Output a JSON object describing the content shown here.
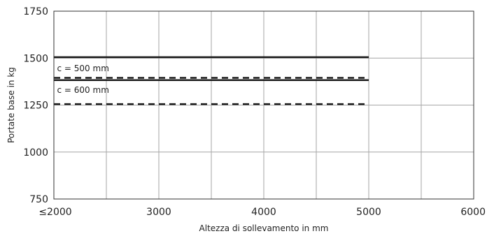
{
  "chart_data": {
    "type": "line",
    "xlabel": "Altezza di sollevamento in mm",
    "ylabel": "Portate base in kg",
    "xlim": [
      2000,
      6000
    ],
    "ylim": [
      750,
      1750
    ],
    "x_ticks": [
      {
        "value": 2000,
        "label": "≤2000"
      },
      {
        "value": 3000,
        "label": "3000"
      },
      {
        "value": 4000,
        "label": "4000"
      },
      {
        "value": 5000,
        "label": "5000"
      },
      {
        "value": 6000,
        "label": "6000"
      }
    ],
    "y_ticks": [
      {
        "value": 750,
        "label": "750"
      },
      {
        "value": 1000,
        "label": "1000"
      },
      {
        "value": 1250,
        "label": "1250"
      },
      {
        "value": 1500,
        "label": "1500"
      },
      {
        "value": 1750,
        "label": "1750"
      }
    ],
    "grid": true,
    "grid_step_x": 500,
    "grid_step_y": 250,
    "colors": {
      "line": "#1a1a1a",
      "grid": "#a6a6a6",
      "axis": "#333333"
    },
    "series": [
      {
        "style": "solid",
        "x": [
          2000,
          5000
        ],
        "y": [
          1505,
          1505
        ]
      },
      {
        "style": "dashed",
        "x": [
          2000,
          5000
        ],
        "y": [
          1395,
          1395
        ]
      },
      {
        "style": "solid",
        "x": [
          2000,
          5000
        ],
        "y": [
          1383,
          1383
        ]
      },
      {
        "style": "dashed",
        "x": [
          2000,
          5000
        ],
        "y": [
          1255,
          1255
        ]
      }
    ],
    "annotations": [
      {
        "text": "c = 500 mm",
        "x": 2030,
        "y": 1445
      },
      {
        "text": "c = 600 mm",
        "x": 2030,
        "y": 1330
      }
    ]
  }
}
